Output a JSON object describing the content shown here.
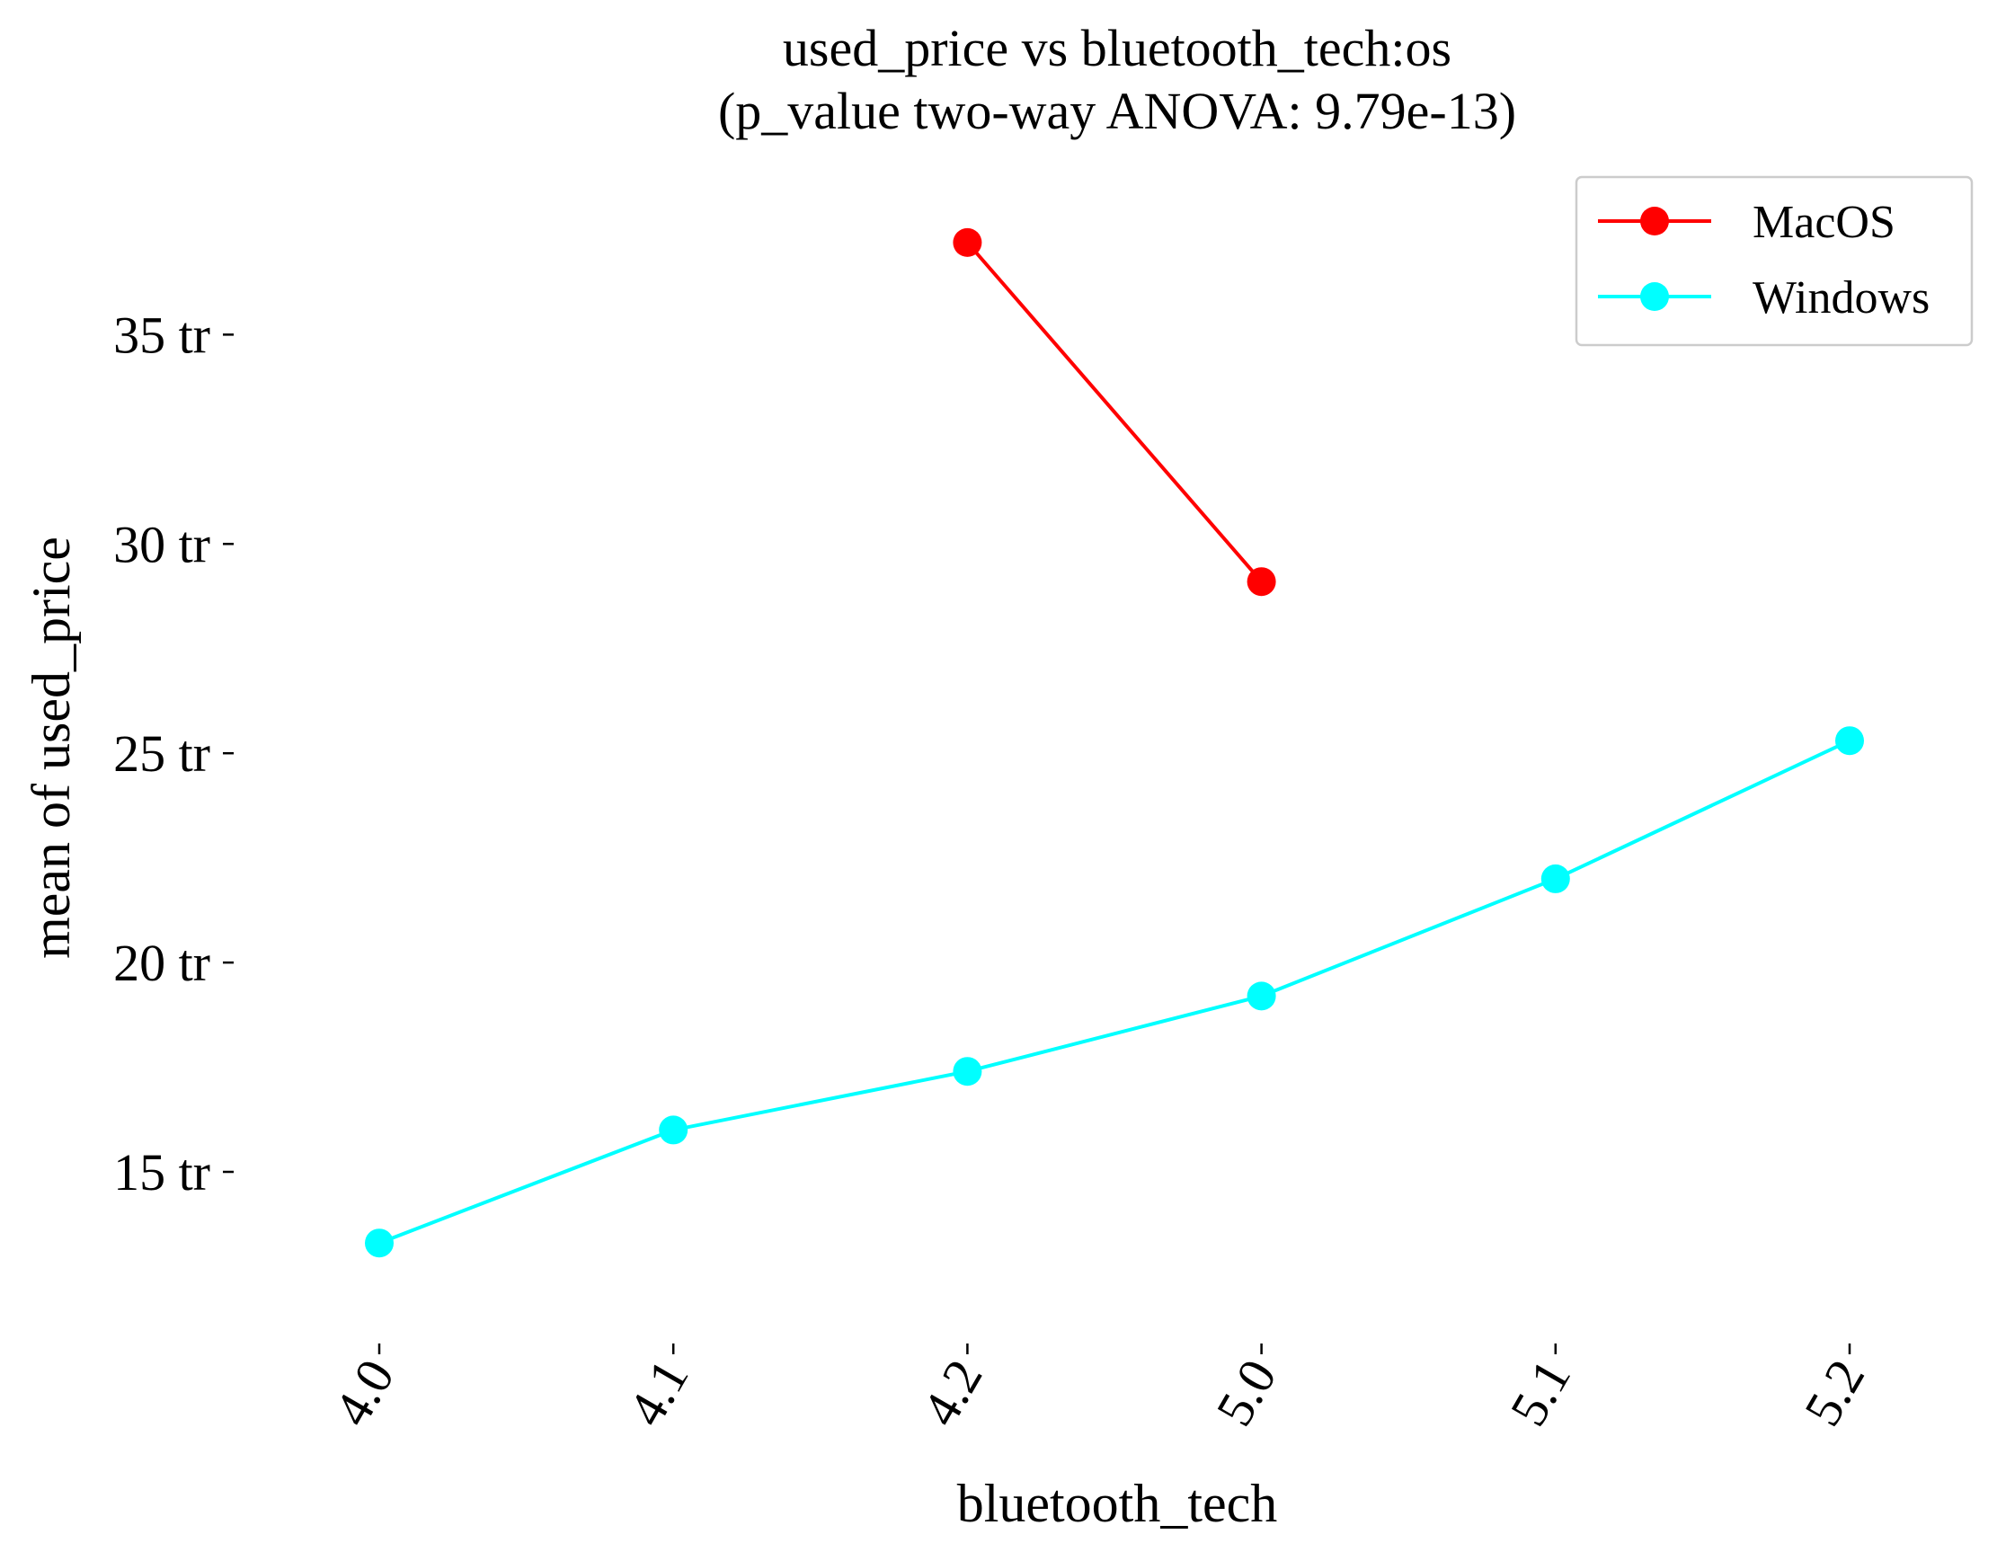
{
  "chart_data": {
    "type": "line",
    "title": "used_price vs bluetooth_tech:os",
    "subtitle": "(p_value two-way ANOVA: 9.79e-13)",
    "xlabel": "bluetooth_tech",
    "ylabel": "mean of used_price",
    "categories": [
      "4.0",
      "4.1",
      "4.2",
      "5.0",
      "5.1",
      "5.2"
    ],
    "y_ticks": [
      {
        "value": 15,
        "label": "15 tr"
      },
      {
        "value": 20,
        "label": "20 tr"
      },
      {
        "value": 25,
        "label": "25 tr"
      },
      {
        "value": 30,
        "label": "30 tr"
      },
      {
        "value": 35,
        "label": "35 tr"
      }
    ],
    "ylim": [
      10.9,
      38.7
    ],
    "grid": false,
    "legend_position": "top-right",
    "series": [
      {
        "name": "MacOS",
        "color": "#ff0000",
        "values": [
          null,
          null,
          37.2,
          29.1,
          null,
          null
        ]
      },
      {
        "name": "Windows",
        "color": "#00ffff",
        "values": [
          13.3,
          16.0,
          17.4,
          19.2,
          22.0,
          25.3
        ]
      }
    ]
  }
}
